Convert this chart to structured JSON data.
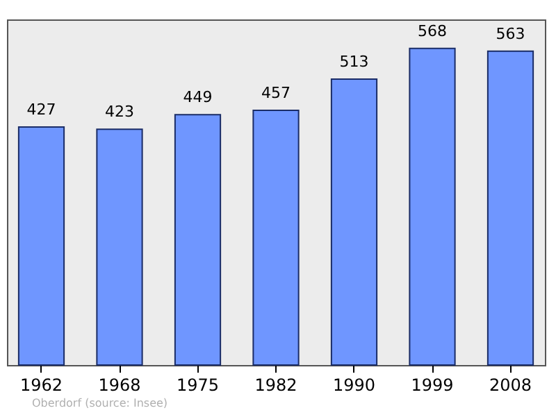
{
  "chart_data": {
    "type": "bar",
    "categories": [
      "1962",
      "1968",
      "1975",
      "1982",
      "1990",
      "1999",
      "2008"
    ],
    "values": [
      427,
      423,
      449,
      457,
      513,
      568,
      563
    ],
    "color": "#6f96ff",
    "ylim": [
      0,
      620
    ],
    "data_labels": true,
    "annotations": [
      "Oberdorf    (source: Insee)"
    ]
  }
}
